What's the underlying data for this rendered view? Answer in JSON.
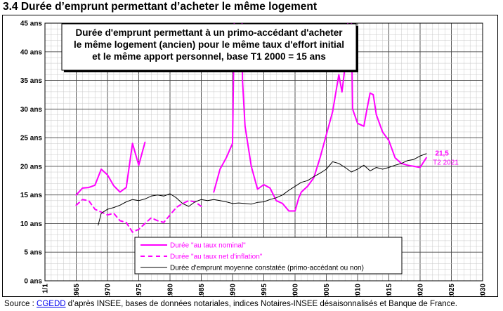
{
  "page": {
    "title": "3.4 Durée d’emprunt permettant d’acheter le même logement",
    "source_prefix": "Source : ",
    "source_link": "CGEDD",
    "source_rest": " d’après INSEE, bases de données notariales, indices Notaires-INSEE désaisonnalisés et Banque de France."
  },
  "chart_data": {
    "type": "line",
    "title_lines": [
      "Durée d'emprunt permettant à un primo-accédant d'acheter",
      "le même logement (ancien) pour le même taux d'effort initial",
      "et le même apport personnel, base T1 2000 = 15 ans"
    ],
    "xlabel": "",
    "ylabel": "",
    "xlim": [
      1960,
      2030
    ],
    "ylim": [
      0,
      45
    ],
    "x_ticks": [
      1960,
      1965,
      1970,
      1975,
      1980,
      1985,
      1990,
      1995,
      2000,
      2005,
      2010,
      2015,
      2020,
      2025,
      2030
    ],
    "x_tick_labels": [
      "1/1",
      "1/1 1965",
      "1/1 1970",
      "1/1 1975",
      "1/1 1980",
      "1/1 1985",
      "1/1 1990",
      "1/1 1995",
      "1/1 2000",
      "1/1 2005",
      "1/1 2010",
      "1/1 2015",
      "1/1 2020",
      "1/1 2025",
      "1/1 2030"
    ],
    "y_ticks": [
      0,
      5,
      10,
      15,
      20,
      25,
      30,
      35,
      40,
      45
    ],
    "y_tick_labels": [
      "0 ans",
      "5 ans",
      "10 ans",
      "15 ans",
      "20 ans",
      "25 ans",
      "30 ans",
      "35 ans",
      "40 ans",
      "45 ans"
    ],
    "grid": true,
    "legend_position": "bottom-center",
    "series": [
      {
        "name": "Durée \"au taux nominal\"",
        "color": "#ff00ff",
        "style": "solid",
        "segments": [
          [
            [
              1965,
              15.0
            ],
            [
              1966,
              16.2
            ],
            [
              1967,
              16.3
            ],
            [
              1968,
              16.7
            ],
            [
              1969,
              19.5
            ],
            [
              1970,
              18.5
            ],
            [
              1971,
              16.6
            ],
            [
              1972,
              15.5
            ],
            [
              1973,
              16.3
            ],
            [
              1974,
              24.0
            ],
            [
              1975,
              20.2
            ],
            [
              1976,
              24.2
            ]
          ],
          [
            [
              1987,
              15.5
            ],
            [
              1988,
              19.5
            ],
            [
              1989,
              21.5
            ],
            [
              1990,
              24.0
            ],
            [
              1990.3,
              47.0
            ],
            [
              1991.5,
              47.0
            ],
            [
              1991.6,
              35.0
            ],
            [
              1992,
              27.0
            ],
            [
              1993,
              20.0
            ],
            [
              1994,
              16.0
            ],
            [
              1995,
              16.8
            ],
            [
              1996,
              16.2
            ],
            [
              1997,
              14.0
            ],
            [
              1998,
              13.5
            ],
            [
              1999,
              12.2
            ],
            [
              2000,
              12.2
            ],
            [
              2000.6,
              14.5
            ],
            [
              2001,
              15.5
            ],
            [
              2002,
              16.5
            ],
            [
              2003,
              18.0
            ],
            [
              2004,
              21.5
            ],
            [
              2005,
              25.5
            ],
            [
              2006,
              29.5
            ],
            [
              2007,
              36.0
            ],
            [
              2007.5,
              33.0
            ],
            [
              2008,
              37.5
            ],
            [
              2008.5,
              46.0
            ],
            [
              2009,
              46.0
            ],
            [
              2009.2,
              30.0
            ],
            [
              2010,
              27.5
            ],
            [
              2011,
              27.0
            ],
            [
              2011.5,
              30.0
            ],
            [
              2012,
              32.8
            ],
            [
              2012.5,
              32.5
            ],
            [
              2013,
              29.0
            ],
            [
              2014,
              26.0
            ],
            [
              2015,
              24.5
            ],
            [
              2016,
              21.5
            ],
            [
              2017,
              20.5
            ],
            [
              2018,
              20.2
            ],
            [
              2019,
              20.0
            ],
            [
              2020,
              19.8
            ],
            [
              2021,
              21.5
            ]
          ]
        ]
      },
      {
        "name": "Durée \"au taux net d'inflation\"",
        "color": "#ff00ff",
        "style": "dashed",
        "segments": [
          [
            [
              1965,
              13.2
            ],
            [
              1966,
              14.2
            ],
            [
              1967,
              14.0
            ],
            [
              1968,
              12.5
            ],
            [
              1969,
              12.0
            ],
            [
              1970,
              11.5
            ],
            [
              1971,
              11.8
            ],
            [
              1972,
              10.5
            ],
            [
              1973,
              10.2
            ],
            [
              1974,
              8.5
            ],
            [
              1975,
              9.0
            ],
            [
              1976,
              10.0
            ],
            [
              1977,
              11.0
            ],
            [
              1978,
              10.5
            ],
            [
              1979,
              10.2
            ],
            [
              1980,
              11.5
            ],
            [
              1981,
              12.8
            ],
            [
              1982,
              13.5
            ],
            [
              1983,
              14.0
            ],
            [
              1984,
              13.8
            ],
            [
              1985,
              13.0
            ]
          ]
        ]
      },
      {
        "name": "Durée d'emprunt moyenne constatée (primo-accédant ou non)",
        "color": "#000000",
        "style": "solid",
        "segments": [
          [
            [
              1968.5,
              9.7
            ],
            [
              1969,
              11.8
            ],
            [
              1970,
              12.5
            ],
            [
              1971,
              12.8
            ],
            [
              1972,
              13.2
            ],
            [
              1973,
              13.8
            ],
            [
              1974,
              14.2
            ],
            [
              1975,
              14.0
            ],
            [
              1976,
              14.3
            ],
            [
              1977,
              14.8
            ],
            [
              1978,
              15.0
            ],
            [
              1979,
              14.8
            ],
            [
              1980,
              15.2
            ],
            [
              1981,
              14.5
            ],
            [
              1982,
              13.5
            ],
            [
              1983,
              13.0
            ],
            [
              1984,
              13.8
            ],
            [
              1985,
              14.2
            ],
            [
              1986,
              14.0
            ],
            [
              1987,
              14.2
            ],
            [
              1988,
              14.0
            ],
            [
              1989,
              13.8
            ],
            [
              1990,
              13.5
            ],
            [
              1991,
              13.6
            ],
            [
              1992,
              13.5
            ],
            [
              1993,
              13.4
            ],
            [
              1994,
              13.7
            ],
            [
              1995,
              13.8
            ],
            [
              1996,
              14.2
            ],
            [
              1997,
              14.5
            ],
            [
              1998,
              15.0
            ],
            [
              1999,
              15.8
            ],
            [
              2000,
              16.5
            ],
            [
              2001,
              17.2
            ],
            [
              2002,
              17.5
            ],
            [
              2003,
              18.2
            ],
            [
              2004,
              18.8
            ],
            [
              2005,
              19.5
            ],
            [
              2006,
              20.8
            ],
            [
              2007,
              20.5
            ],
            [
              2008,
              19.8
            ],
            [
              2009,
              19.0
            ],
            [
              2010,
              19.5
            ],
            [
              2011,
              20.2
            ],
            [
              2012,
              19.2
            ],
            [
              2013,
              19.8
            ],
            [
              2014,
              19.5
            ],
            [
              2015,
              19.8
            ],
            [
              2016,
              20.2
            ],
            [
              2017,
              20.5
            ],
            [
              2018,
              21.0
            ],
            [
              2019,
              21.2
            ],
            [
              2020,
              21.8
            ],
            [
              2021,
              22.2
            ]
          ]
        ]
      }
    ],
    "annotations": [
      {
        "text": "21,5",
        "x": 2023.5,
        "y": 21.9,
        "bold": true,
        "color": "#ff00ff"
      },
      {
        "text": "T2 2021",
        "x": 2024.1,
        "y": 20.3,
        "bold": false,
        "color": "#ff00ff"
      }
    ]
  }
}
